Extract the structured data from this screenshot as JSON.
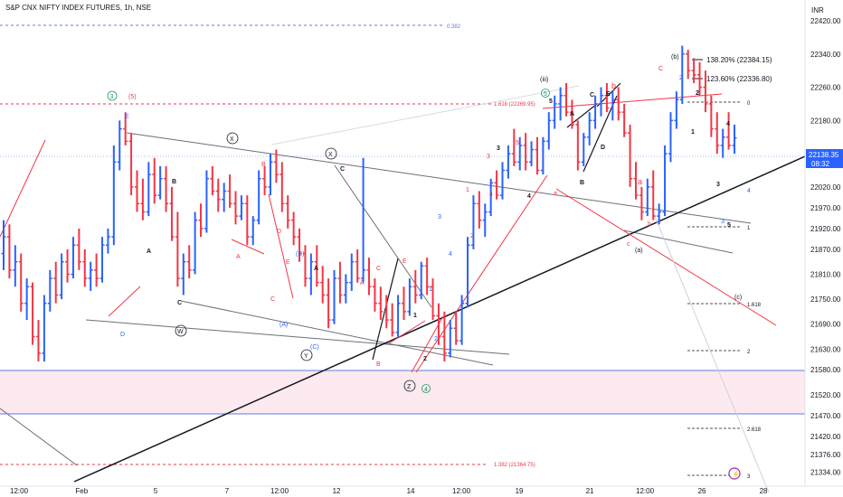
{
  "header": {
    "title": "S&P CNX NIFTY INDEX FUTURES, 1h, NSE",
    "currency": "INR"
  },
  "price_badge": {
    "price": "22138.35",
    "countdown": "08:32",
    "color": "#2962ff"
  },
  "projection_labels": {
    "p1382": "138.20% (22384.15)",
    "p1236": "123.60% (22336.80)"
  },
  "chart_data": {
    "type": "candlestick",
    "title": "S&P CNX NIFTY INDEX FUTURES, 1h, NSE",
    "xlabel": "",
    "ylabel": "",
    "ylim": [
      21300,
      22470
    ],
    "y_ticks": [
      22420.0,
      22340.0,
      22260.0,
      22180.0,
      22100.0,
      22020.0,
      21970.0,
      21920.0,
      21870.0,
      21810.0,
      21750.0,
      21690.0,
      21630.0,
      21580.0,
      21520.0,
      21470.0,
      21420.0,
      21376.0,
      21334.0
    ],
    "x_ticks": [
      "12:00",
      "Feb",
      "5",
      "7",
      "12:00",
      "12",
      "14",
      "12:00",
      "19",
      "21",
      "12:00",
      "26",
      "28"
    ],
    "up_color": "#2962ff",
    "down_color": "#f23645",
    "bars": [
      {
        "o": 21860,
        "h": 21940,
        "l": 21820,
        "c": 21900
      },
      {
        "o": 21900,
        "h": 21930,
        "l": 21800,
        "c": 21820
      },
      {
        "o": 21820,
        "h": 21880,
        "l": 21780,
        "c": 21840
      },
      {
        "o": 21840,
        "h": 21860,
        "l": 21720,
        "c": 21740
      },
      {
        "o": 21740,
        "h": 21800,
        "l": 21700,
        "c": 21780
      },
      {
        "o": 21780,
        "h": 21790,
        "l": 21640,
        "c": 21660
      },
      {
        "o": 21660,
        "h": 21700,
        "l": 21600,
        "c": 21620
      },
      {
        "o": 21620,
        "h": 21760,
        "l": 21600,
        "c": 21740
      },
      {
        "o": 21740,
        "h": 21820,
        "l": 21720,
        "c": 21800
      },
      {
        "o": 21800,
        "h": 21840,
        "l": 21740,
        "c": 21760
      },
      {
        "o": 21760,
        "h": 21860,
        "l": 21750,
        "c": 21840
      },
      {
        "o": 21840,
        "h": 21870,
        "l": 21790,
        "c": 21810
      },
      {
        "o": 21810,
        "h": 21900,
        "l": 21800,
        "c": 21880
      },
      {
        "o": 21880,
        "h": 21920,
        "l": 21820,
        "c": 21840
      },
      {
        "o": 21840,
        "h": 21870,
        "l": 21780,
        "c": 21800
      },
      {
        "o": 21800,
        "h": 21840,
        "l": 21770,
        "c": 21820
      },
      {
        "o": 21820,
        "h": 21860,
        "l": 21780,
        "c": 21800
      },
      {
        "o": 21800,
        "h": 21900,
        "l": 21790,
        "c": 21880
      },
      {
        "o": 21880,
        "h": 21920,
        "l": 21860,
        "c": 21900
      },
      {
        "o": 21900,
        "h": 22120,
        "l": 21880,
        "c": 22080
      },
      {
        "o": 22080,
        "h": 22180,
        "l": 22060,
        "c": 22160
      },
      {
        "o": 22160,
        "h": 22200,
        "l": 22120,
        "c": 22130
      },
      {
        "o": 22130,
        "h": 22150,
        "l": 22000,
        "c": 22020
      },
      {
        "o": 22020,
        "h": 22060,
        "l": 21960,
        "c": 21980
      },
      {
        "o": 21980,
        "h": 22040,
        "l": 21940,
        "c": 21960
      },
      {
        "o": 21960,
        "h": 22080,
        "l": 21950,
        "c": 22050
      },
      {
        "o": 22050,
        "h": 22090,
        "l": 21980,
        "c": 22000
      },
      {
        "o": 22000,
        "h": 22070,
        "l": 21990,
        "c": 22040
      },
      {
        "o": 22040,
        "h": 22070,
        "l": 21960,
        "c": 21980
      },
      {
        "o": 21980,
        "h": 22020,
        "l": 21890,
        "c": 21900
      },
      {
        "o": 21900,
        "h": 21960,
        "l": 21780,
        "c": 21800
      },
      {
        "o": 21800,
        "h": 21860,
        "l": 21760,
        "c": 21840
      },
      {
        "o": 21840,
        "h": 21880,
        "l": 21800,
        "c": 21820
      },
      {
        "o": 21820,
        "h": 21960,
        "l": 21810,
        "c": 21940
      },
      {
        "o": 21940,
        "h": 21980,
        "l": 21900,
        "c": 21920
      },
      {
        "o": 21920,
        "h": 22060,
        "l": 21910,
        "c": 22040
      },
      {
        "o": 22040,
        "h": 22070,
        "l": 22000,
        "c": 22010
      },
      {
        "o": 22010,
        "h": 22040,
        "l": 21960,
        "c": 21990
      },
      {
        "o": 21990,
        "h": 22030,
        "l": 21960,
        "c": 22010
      },
      {
        "o": 22010,
        "h": 22050,
        "l": 21970,
        "c": 21980
      },
      {
        "o": 21980,
        "h": 22010,
        "l": 21930,
        "c": 21950
      },
      {
        "o": 21950,
        "h": 22000,
        "l": 21940,
        "c": 21980
      },
      {
        "o": 21980,
        "h": 22000,
        "l": 21880,
        "c": 21900
      },
      {
        "o": 21900,
        "h": 21950,
        "l": 21880,
        "c": 21940
      },
      {
        "o": 21940,
        "h": 22060,
        "l": 21930,
        "c": 22040
      },
      {
        "o": 22040,
        "h": 22070,
        "l": 22000,
        "c": 22020
      },
      {
        "o": 22020,
        "h": 22100,
        "l": 22000,
        "c": 22080
      },
      {
        "o": 22080,
        "h": 22110,
        "l": 22030,
        "c": 22050
      },
      {
        "o": 22050,
        "h": 22080,
        "l": 21960,
        "c": 21980
      },
      {
        "o": 21980,
        "h": 22000,
        "l": 21920,
        "c": 21940
      },
      {
        "o": 21940,
        "h": 21960,
        "l": 21880,
        "c": 21900
      },
      {
        "o": 21900,
        "h": 21920,
        "l": 21840,
        "c": 21860
      },
      {
        "o": 21860,
        "h": 21880,
        "l": 21780,
        "c": 21800
      },
      {
        "o": 21800,
        "h": 21860,
        "l": 21760,
        "c": 21840
      },
      {
        "o": 21840,
        "h": 21880,
        "l": 21780,
        "c": 21790
      },
      {
        "o": 21790,
        "h": 21830,
        "l": 21740,
        "c": 21760
      },
      {
        "o": 21760,
        "h": 21800,
        "l": 21680,
        "c": 21700
      },
      {
        "o": 21700,
        "h": 21820,
        "l": 21690,
        "c": 21800
      },
      {
        "o": 21800,
        "h": 21840,
        "l": 21740,
        "c": 21760
      },
      {
        "o": 21760,
        "h": 21810,
        "l": 21740,
        "c": 21790
      },
      {
        "o": 21790,
        "h": 21860,
        "l": 21770,
        "c": 21840
      },
      {
        "o": 21840,
        "h": 21870,
        "l": 21790,
        "c": 21800
      },
      {
        "o": 21800,
        "h": 22090,
        "l": 21790,
        "c": 21820
      },
      {
        "o": 21820,
        "h": 21850,
        "l": 21760,
        "c": 21780
      },
      {
        "o": 21780,
        "h": 21800,
        "l": 21720,
        "c": 21740
      },
      {
        "o": 21740,
        "h": 21780,
        "l": 21700,
        "c": 21720
      },
      {
        "o": 21720,
        "h": 21760,
        "l": 21680,
        "c": 21700
      },
      {
        "o": 21700,
        "h": 21740,
        "l": 21660,
        "c": 21670
      },
      {
        "o": 21670,
        "h": 21760,
        "l": 21660,
        "c": 21740
      },
      {
        "o": 21740,
        "h": 21780,
        "l": 21700,
        "c": 21720
      },
      {
        "o": 21720,
        "h": 21800,
        "l": 21710,
        "c": 21780
      },
      {
        "o": 21780,
        "h": 21820,
        "l": 21740,
        "c": 21760
      },
      {
        "o": 21760,
        "h": 21840,
        "l": 21750,
        "c": 21830
      },
      {
        "o": 21830,
        "h": 21850,
        "l": 21760,
        "c": 21780
      },
      {
        "o": 21780,
        "h": 21800,
        "l": 21700,
        "c": 21710
      },
      {
        "o": 21710,
        "h": 21740,
        "l": 21640,
        "c": 21660
      },
      {
        "o": 21660,
        "h": 21720,
        "l": 21600,
        "c": 21620
      },
      {
        "o": 21620,
        "h": 21700,
        "l": 21610,
        "c": 21680
      },
      {
        "o": 21680,
        "h": 21720,
        "l": 21640,
        "c": 21650
      },
      {
        "o": 21650,
        "h": 21760,
        "l": 21640,
        "c": 21740
      },
      {
        "o": 21740,
        "h": 21900,
        "l": 21730,
        "c": 21880
      },
      {
        "o": 21880,
        "h": 22000,
        "l": 21870,
        "c": 21980
      },
      {
        "o": 21980,
        "h": 22010,
        "l": 21920,
        "c": 21940
      },
      {
        "o": 21940,
        "h": 21980,
        "l": 21900,
        "c": 21960
      },
      {
        "o": 21960,
        "h": 22040,
        "l": 21950,
        "c": 22030
      },
      {
        "o": 22030,
        "h": 22060,
        "l": 21990,
        "c": 22000
      },
      {
        "o": 22000,
        "h": 22080,
        "l": 21990,
        "c": 22060
      },
      {
        "o": 22060,
        "h": 22120,
        "l": 22040,
        "c": 22100
      },
      {
        "o": 22100,
        "h": 22160,
        "l": 22070,
        "c": 22080
      },
      {
        "o": 22080,
        "h": 22140,
        "l": 22060,
        "c": 22120
      },
      {
        "o": 22120,
        "h": 22150,
        "l": 22060,
        "c": 22080
      },
      {
        "o": 22080,
        "h": 22130,
        "l": 22070,
        "c": 22110
      },
      {
        "o": 22110,
        "h": 22140,
        "l": 22050,
        "c": 22060
      },
      {
        "o": 22060,
        "h": 22140,
        "l": 22050,
        "c": 22130
      },
      {
        "o": 22130,
        "h": 22200,
        "l": 22110,
        "c": 22180
      },
      {
        "o": 22180,
        "h": 22240,
        "l": 22160,
        "c": 22220
      },
      {
        "o": 22220,
        "h": 22260,
        "l": 22180,
        "c": 22240
      },
      {
        "o": 22240,
        "h": 22270,
        "l": 22190,
        "c": 22200
      },
      {
        "o": 22200,
        "h": 22230,
        "l": 22160,
        "c": 22170
      },
      {
        "o": 22170,
        "h": 22180,
        "l": 22060,
        "c": 22080
      },
      {
        "o": 22080,
        "h": 22150,
        "l": 22070,
        "c": 22140
      },
      {
        "o": 22140,
        "h": 22200,
        "l": 22120,
        "c": 22180
      },
      {
        "o": 22180,
        "h": 22240,
        "l": 22160,
        "c": 22220
      },
      {
        "o": 22220,
        "h": 22260,
        "l": 22190,
        "c": 22240
      },
      {
        "o": 22240,
        "h": 22270,
        "l": 22200,
        "c": 22210
      },
      {
        "o": 22210,
        "h": 22250,
        "l": 22180,
        "c": 22230
      },
      {
        "o": 22230,
        "h": 22260,
        "l": 22180,
        "c": 22200
      },
      {
        "o": 22200,
        "h": 22220,
        "l": 22140,
        "c": 22150
      },
      {
        "o": 22150,
        "h": 22170,
        "l": 22020,
        "c": 22040
      },
      {
        "o": 22040,
        "h": 22080,
        "l": 21990,
        "c": 22000
      },
      {
        "o": 22000,
        "h": 22020,
        "l": 21940,
        "c": 21960
      },
      {
        "o": 21960,
        "h": 22040,
        "l": 21950,
        "c": 22020
      },
      {
        "o": 22020,
        "h": 22060,
        "l": 21940,
        "c": 21950
      },
      {
        "o": 21950,
        "h": 21980,
        "l": 21930,
        "c": 21960
      },
      {
        "o": 21960,
        "h": 22120,
        "l": 21950,
        "c": 22100
      },
      {
        "o": 22100,
        "h": 22200,
        "l": 22080,
        "c": 22180
      },
      {
        "o": 22180,
        "h": 22250,
        "l": 22160,
        "c": 22230
      },
      {
        "o": 22230,
        "h": 22360,
        "l": 22220,
        "c": 22340
      },
      {
        "o": 22340,
        "h": 22350,
        "l": 22280,
        "c": 22300
      },
      {
        "o": 22300,
        "h": 22330,
        "l": 22270,
        "c": 22290
      },
      {
        "o": 22290,
        "h": 22320,
        "l": 22240,
        "c": 22260
      },
      {
        "o": 22260,
        "h": 22300,
        "l": 22200,
        "c": 22220
      },
      {
        "o": 22220,
        "h": 22240,
        "l": 22140,
        "c": 22160
      },
      {
        "o": 22160,
        "h": 22200,
        "l": 22100,
        "c": 22120
      },
      {
        "o": 22120,
        "h": 22160,
        "l": 22090,
        "c": 22140
      },
      {
        "o": 22140,
        "h": 22200,
        "l": 22110,
        "c": 22120
      },
      {
        "o": 22120,
        "h": 22170,
        "l": 22100,
        "c": 22138
      }
    ]
  },
  "wave_labels": {
    "circ3": "3",
    "s5": "(5)",
    "E_blue": "E",
    "B1": "B",
    "A1": "A",
    "C1": "C",
    "D_blue": "D",
    "W": "W",
    "X1": "X",
    "B_red": "B",
    "D_red": "D",
    "A_red": "A",
    "E_red": "E",
    "C_red": "C",
    "pB": "(B)",
    "pA": "(A)",
    "pC": "(C)",
    "X2": "X",
    "C2": "C",
    "A2": "A",
    "Y": "Y",
    "C3": "C",
    "A3": "A",
    "B3": "B",
    "E2": "E",
    "Z": "Z",
    "circ4": "4",
    "n1a": "1",
    "n2a": "2",
    "n1b": "1",
    "n2b": "2",
    "n3b": "3",
    "n4b": "4",
    "r1": "1",
    "r2": "2",
    "r3": "3",
    "r4": "4",
    "r5": "5",
    "k3": "3",
    "k4": "4",
    "iii": "(iii)",
    "circ5": "5",
    "k5": "5",
    "ra": "a",
    "rb": "b",
    "rb2": "b",
    "rc": "c",
    "ra2": "a",
    "A4": "A",
    "B4": "B",
    "C4": "C",
    "D4": "D",
    "E4": "E",
    "pa": "(a)",
    "pb": "(b)",
    "C5": "C",
    "b2": "2",
    "b1": "1",
    "k1": "1",
    "k2": "2",
    "k3b": "3",
    "k4b": "4",
    "b4": "4",
    "pc": "(c)",
    "b3": "3",
    "k5b": "5"
  },
  "fib_labels": {
    "f382": "0.382",
    "f1618": "1.618 (22269.95)",
    "f1382": "1.382 (21364.75)",
    "r0": "0",
    "r1": "1",
    "r1618": "1.618",
    "r2": "2",
    "r2618": "2.618",
    "r3": "3"
  }
}
